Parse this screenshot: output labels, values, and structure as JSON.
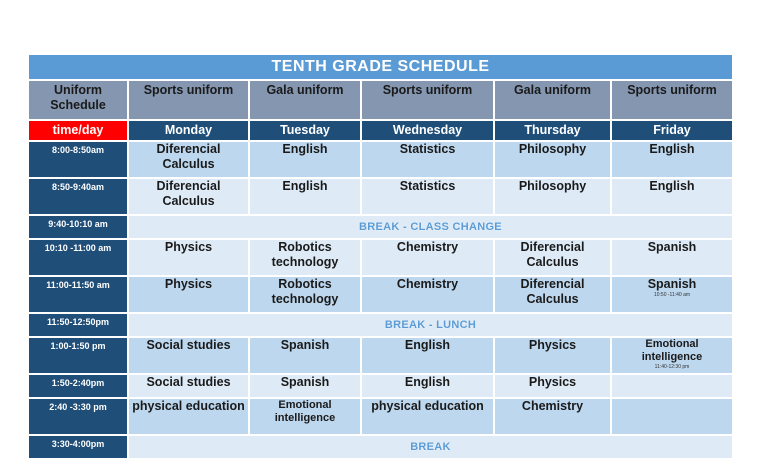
{
  "title": "TENTH GRADE SCHEDULE",
  "uniform_header": "Uniform Schedule",
  "uniforms": [
    "Sports uniform",
    "Gala uniform",
    "Sports uniform",
    "Gala uniform",
    "Sports uniform"
  ],
  "time_day_label": "time/day",
  "days": [
    "Monday",
    "Tuesday",
    "Wednesday",
    "Thursday",
    "Friday"
  ],
  "rows": [
    {
      "time": "8:00-8:50am",
      "cells": [
        "Diferencial Calculus",
        "English",
        "Statistics",
        "Philosophy",
        "English"
      ]
    },
    {
      "time": "8:50-9:40am",
      "cells": [
        "Diferencial Calculus",
        "English",
        "Statistics",
        "Philosophy",
        "English"
      ]
    },
    {
      "time": "9:40-10:10 am",
      "break": "BREAK - CLASS CHANGE"
    },
    {
      "time": "10:10 -11:00 am",
      "cells": [
        "Physics",
        "Robotics technology",
        "Chemistry",
        "Diferencial Calculus",
        "Spanish"
      ]
    },
    {
      "time": "11:00-11:50 am",
      "cells": [
        "Physics",
        "Robotics technology",
        "Chemistry",
        "Diferencial Calculus",
        "Spanish"
      ],
      "note": "10:50 -11:40 am"
    },
    {
      "time": "11:50-12:50pm",
      "break": "BREAK - LUNCH"
    },
    {
      "time": "1:00-1:50 pm",
      "cells": [
        "Social studies",
        "Spanish",
        "English",
        "Physics",
        "Emotional intelligence"
      ],
      "note": "11:40-12:30 pm"
    },
    {
      "time": "1:50-2:40pm",
      "cells": [
        "Social studies",
        "Spanish",
        "English",
        "Physics",
        ""
      ]
    },
    {
      "time": "2:40 -3:30 pm",
      "cells": [
        "physical education",
        "Emotional intelligence",
        "physical education",
        "Chemistry",
        ""
      ]
    },
    {
      "time": "3:30-4:00pm",
      "break": "BREAK"
    }
  ],
  "colors": {
    "title_bg": "#5b9bd5",
    "header_bg": "#8496b0",
    "day_bg": "#1f4e79",
    "time_day_bg": "#ff0000",
    "cell_dark": "#bdd7ee",
    "cell_light": "#deebf7"
  }
}
